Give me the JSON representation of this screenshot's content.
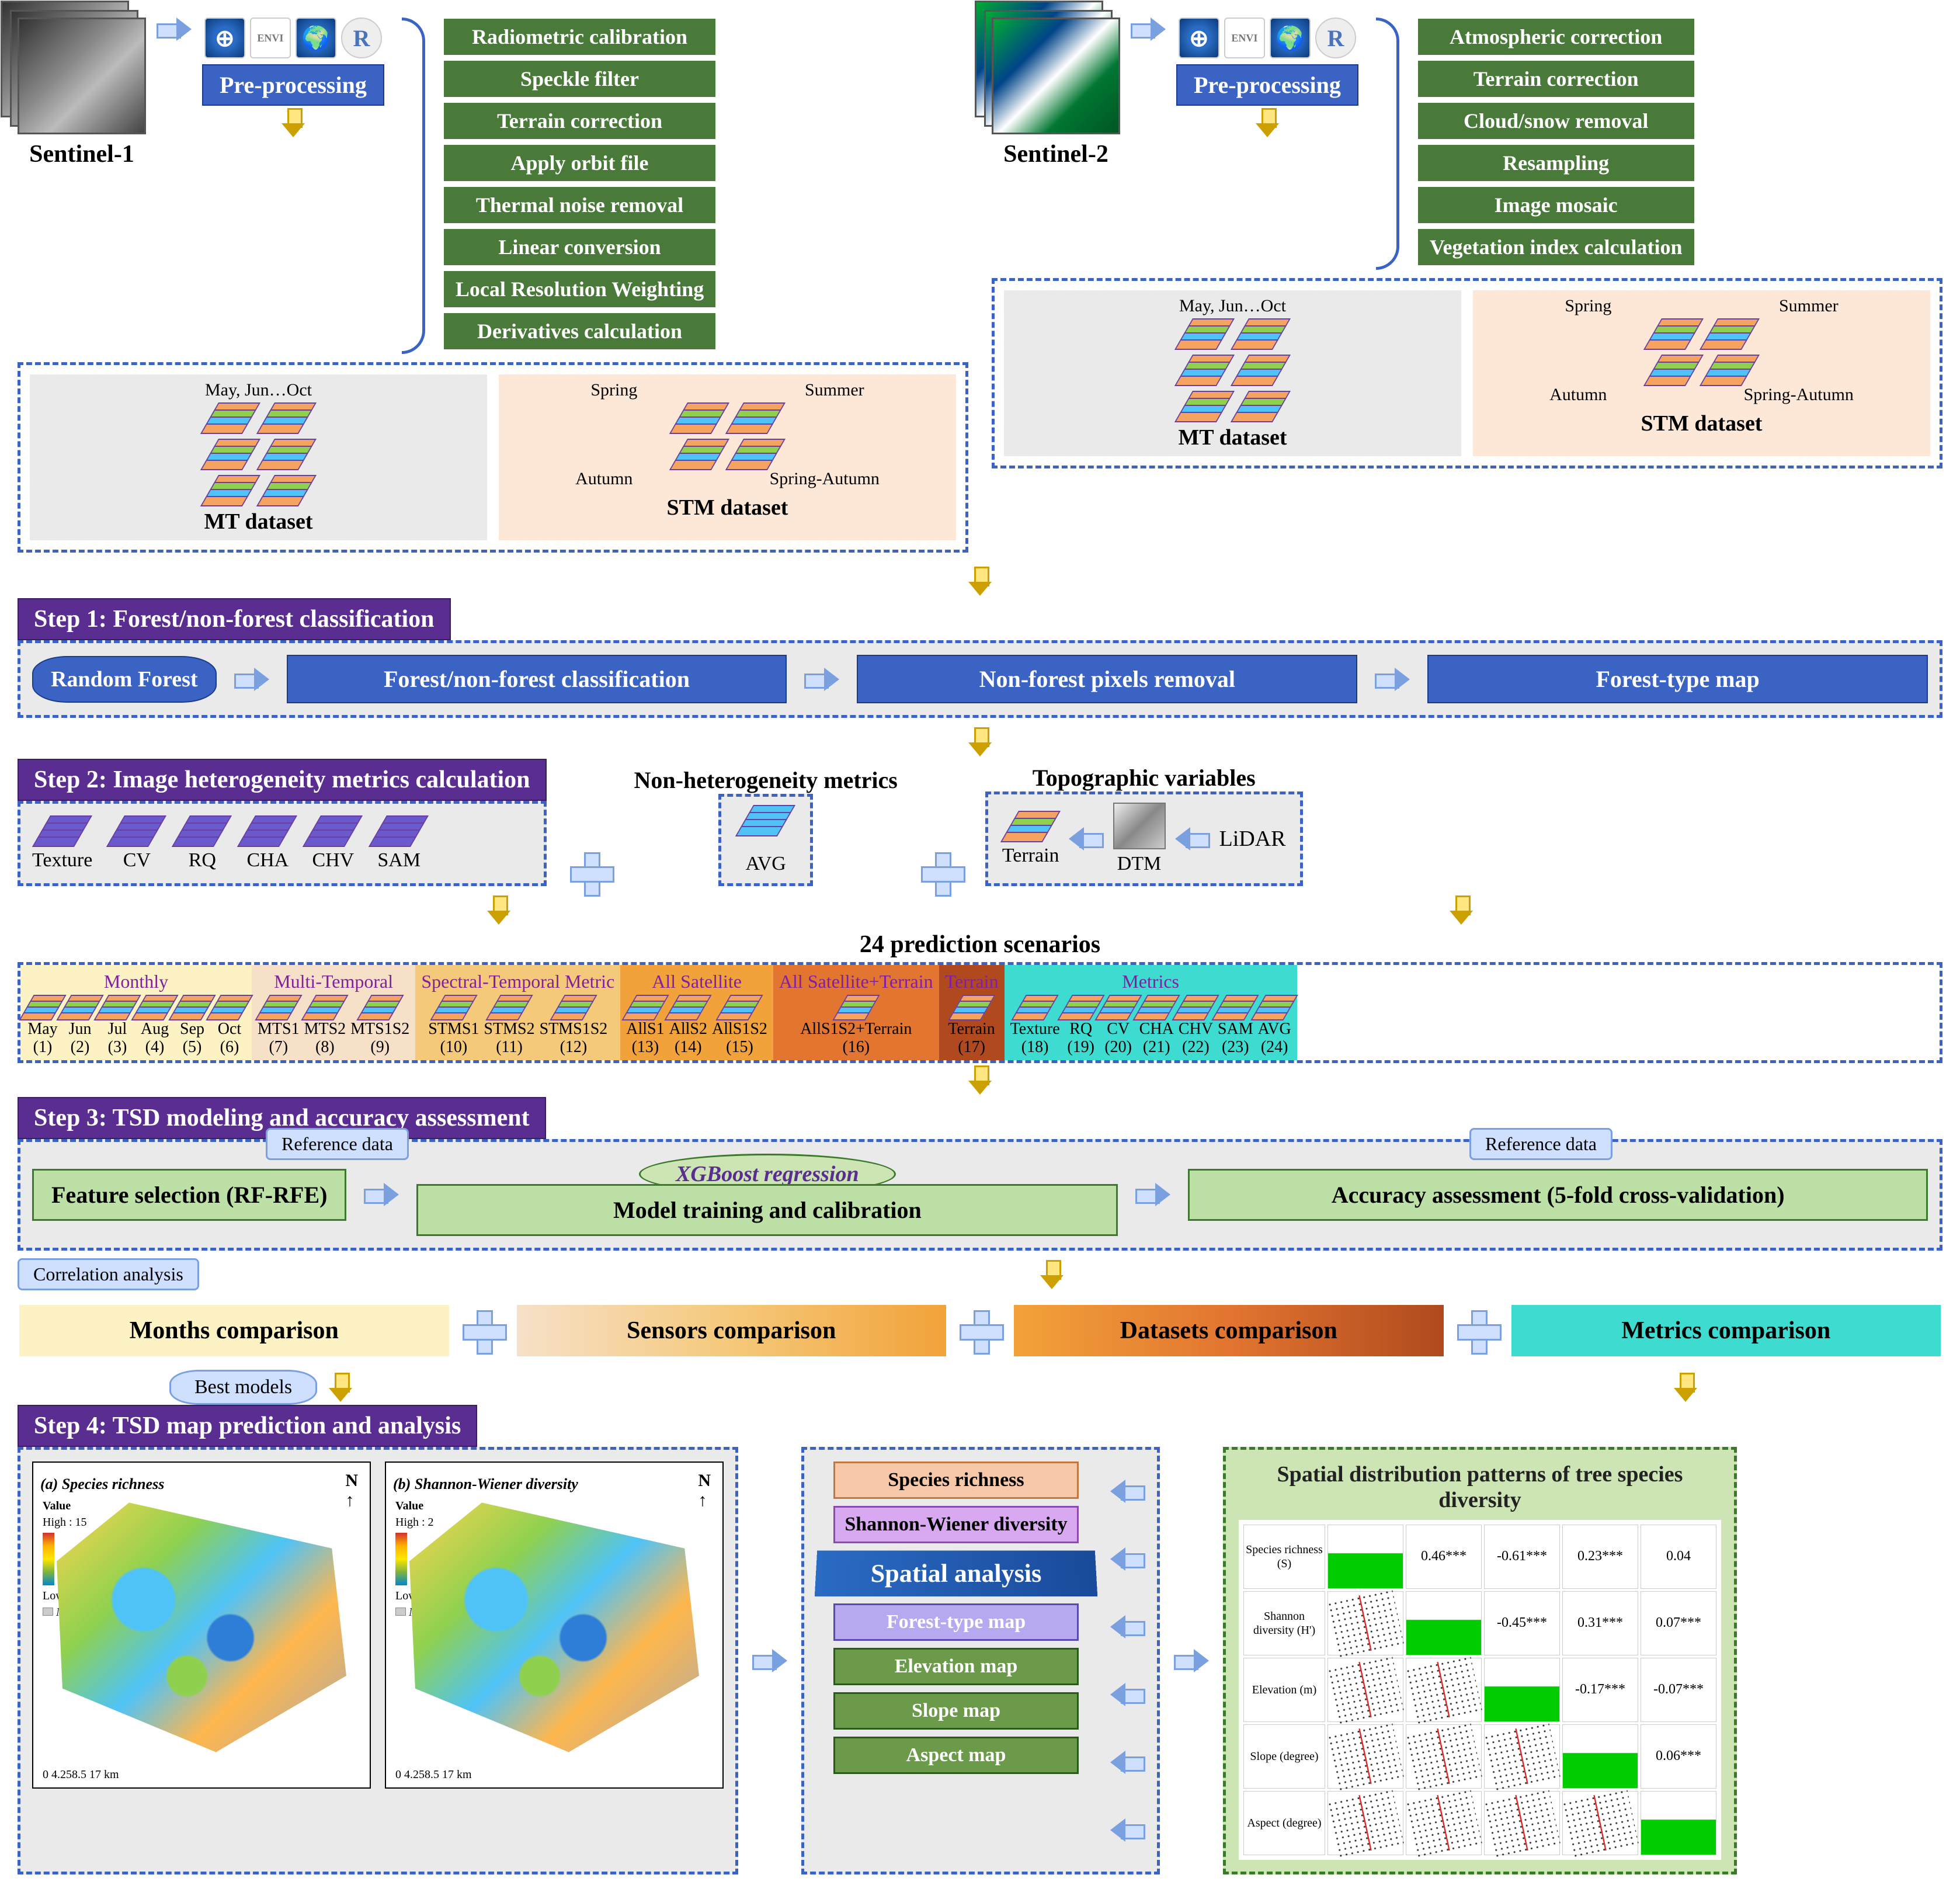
{
  "sensors": {
    "s1": "Sentinel-1",
    "s2": "Sentinel-2"
  },
  "preproc": "Pre-processing",
  "software": {
    "envi": "ENVI",
    "r": "R"
  },
  "s1_steps": [
    "Radiometric calibration",
    "Speckle filter",
    "Terrain correction",
    "Apply orbit file",
    "Thermal noise removal",
    "Linear conversion",
    "Local Resolution Weighting",
    "Derivatives calculation"
  ],
  "s2_steps": [
    "Atmospheric correction",
    "Terrain correction",
    "Cloud/snow removal",
    "Resampling",
    "Image mosaic",
    "Vegetation index calculation"
  ],
  "dataset": {
    "mt_label": "MT dataset",
    "stm_label": "STM dataset",
    "mt_months": "May, Jun…Oct",
    "stm_seasons": [
      "Spring",
      "Summer",
      "Autumn",
      "Spring-Autumn"
    ]
  },
  "step1": {
    "hdr": "Step 1: Forest/non-forest classification",
    "rf": "Random Forest",
    "cls": "Forest/non-forest classification",
    "rem": "Non-forest pixels removal",
    "map": "Forest-type map"
  },
  "step2": {
    "hdr": "Step 2: Image heterogeneity metrics calculation",
    "metrics": [
      "Texture",
      "CV",
      "RQ",
      "CHA",
      "CHV",
      "SAM"
    ],
    "nonhet": "Non-heterogeneity metrics",
    "avg": "AVG",
    "topo": "Topographic variables",
    "terrain": "Terrain",
    "dtm": "DTM",
    "lidar": "LiDAR"
  },
  "scenarios": {
    "title": "24 prediction scenarios",
    "groups": [
      {
        "hdr": "Monthly",
        "bg": "#fdf2c4",
        "items": [
          {
            "n": "May",
            "i": "(1)"
          },
          {
            "n": "Jun",
            "i": "(2)"
          },
          {
            "n": "Jul",
            "i": "(3)"
          },
          {
            "n": "Aug",
            "i": "(4)"
          },
          {
            "n": "Sep",
            "i": "(5)"
          },
          {
            "n": "Oct",
            "i": "(6)"
          }
        ]
      },
      {
        "hdr": "Multi-Temporal",
        "bg": "#f6e0c8",
        "items": [
          {
            "n": "MTS1",
            "i": "(7)"
          },
          {
            "n": "MTS2",
            "i": "(8)"
          },
          {
            "n": "MTS1S2",
            "i": "(9)"
          }
        ]
      },
      {
        "hdr": "Spectral-Temporal Metric",
        "bg": "#f5c97a",
        "items": [
          {
            "n": "STMS1",
            "i": "(10)"
          },
          {
            "n": "STMS2",
            "i": "(11)"
          },
          {
            "n": "STMS1S2",
            "i": "(12)"
          }
        ]
      },
      {
        "hdr": "All Satellite",
        "bg": "#f2a23a",
        "items": [
          {
            "n": "AllS1",
            "i": "(13)"
          },
          {
            "n": "AllS2",
            "i": "(14)"
          },
          {
            "n": "AllS1S2",
            "i": "(15)"
          }
        ]
      },
      {
        "hdr": "All Satellite+Terrain",
        "bg": "#e27530",
        "items": [
          {
            "n": "AllS1S2+Terrain",
            "i": "(16)"
          }
        ]
      },
      {
        "hdr": "Terrain",
        "bg": "#b04a1e",
        "items": [
          {
            "n": "Terrain",
            "i": "(17)"
          }
        ]
      },
      {
        "hdr": "Metrics",
        "bg": "#3ddbd0",
        "items": [
          {
            "n": "Texture",
            "i": "(18)"
          },
          {
            "n": "RQ",
            "i": "(19)"
          },
          {
            "n": "CV",
            "i": "(20)"
          },
          {
            "n": "CHA",
            "i": "(21)"
          },
          {
            "n": "CHV",
            "i": "(22)"
          },
          {
            "n": "SAM",
            "i": "(23)"
          },
          {
            "n": "AVG",
            "i": "(24)"
          }
        ]
      }
    ]
  },
  "step3": {
    "hdr": "Step 3: TSD modeling and accuracy assessment",
    "ref": "Reference data",
    "feat": "Feature selection (RF-RFE)",
    "xgb": "XGBoost regression",
    "train": "Model training and calibration",
    "acc": "Accuracy assessment (5-fold cross-validation)",
    "corr": "Correlation analysis"
  },
  "comparisons": [
    {
      "t": "Months comparison",
      "bg": "#fdf2c4"
    },
    {
      "t": "Sensors comparison",
      "bg": "linear-gradient(to right,#f6e0c8,#f5c97a,#f2a23a)"
    },
    {
      "t": "Datasets comparison",
      "bg": "linear-gradient(to right,#f2a23a,#e27530,#b04a1e)"
    },
    {
      "t": "Metrics comparison",
      "bg": "#3ddbd0"
    }
  ],
  "bestmodels": "Best models",
  "step4": {
    "hdr": "Step 4: TSD map prediction and analysis",
    "map_a": {
      "tag": "(a)",
      "title": "Species richness",
      "hi": "High : 15",
      "lo": "Low : 1",
      "nf": "Non-forest",
      "scale": "0  4.258.5     17 km"
    },
    "map_b": {
      "tag": "(b)",
      "title": "Shannon-Wiener diversity",
      "hi": "High : 2",
      "lo": "Low : 0",
      "nf": "Non-forest",
      "scale": "0  4.258.5     17 km"
    },
    "spatial": "Spatial analysis",
    "layers": [
      {
        "t": "Species richness",
        "bg": "#f6c8a8",
        "bc": "#c07840"
      },
      {
        "t": "Shannon-Wiener diversity",
        "bg": "#d8a8f0",
        "bc": "#8a4ab0"
      },
      {
        "t": "Forest-type map",
        "bg": "#b8a8f0",
        "bc": "#5a4ab0"
      },
      {
        "t": "Elevation map",
        "bg": "#6a9a4a",
        "bc": "#2a5a1a"
      },
      {
        "t": "Slope map",
        "bg": "#6a9a4a",
        "bc": "#2a5a1a"
      },
      {
        "t": "Aspect map",
        "bg": "#6a9a4a",
        "bc": "#2a5a1a"
      }
    ],
    "corr_panel_title": "Spatial distribution patterns of tree species diversity",
    "corr_labels": [
      "Species richness (S)",
      "Shannon diversity (H')",
      "Elevation (m)",
      "Slope (degree)",
      "Aspect (degree)"
    ],
    "corr_vals": [
      [
        "",
        "0.46***",
        "-0.61***",
        "0.23***",
        "0.04"
      ],
      [
        "",
        "",
        "-0.45***",
        "0.31***",
        "0.07***"
      ],
      [
        "",
        "",
        "",
        "-0.17***",
        "-0.07***"
      ],
      [
        "",
        "",
        "",
        "",
        "0.06***"
      ],
      [
        "",
        "",
        "",
        "",
        ""
      ]
    ]
  },
  "colors": {
    "blue": "#3b63c4",
    "green": "#4a7a3a",
    "purple": "#5a2d91",
    "dash": "#3b63c4",
    "lightgreen": "#bde0a6",
    "cyan": "#3ddbd0"
  }
}
